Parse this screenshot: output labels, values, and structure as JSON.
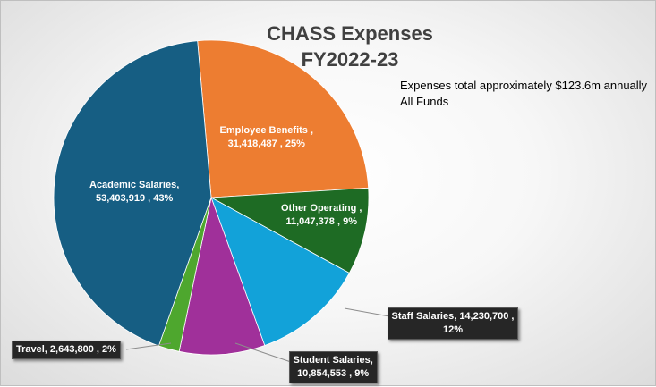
{
  "chart_data": {
    "type": "pie",
    "title_line1": "CHASS Expenses",
    "title_line2": "FY2022-23",
    "note_line1": "Expenses total approximately $123.6m annually",
    "note_line2": "All Funds",
    "slices": [
      {
        "name": "Employee Benefits",
        "value": 31418487,
        "value_text": "31,418,487",
        "percent_text": "25%",
        "color": "#ED7D31",
        "label_line1": "Employee Benefits ,",
        "label_line2": "31,418,487 , 25%"
      },
      {
        "name": "Other Operating",
        "value": 11047378,
        "value_text": "11,047,378",
        "percent_text": "9%",
        "color": "#1E6B24",
        "label_line1": "Other Operating ,",
        "label_line2": "11,047,378 , 9%"
      },
      {
        "name": "Staff Salaries",
        "value": 14230700,
        "value_text": "14,230,700",
        "percent_text": "12%",
        "color": "#12A2D9",
        "label_line1": "Staff Salaries,  14,230,700 ,",
        "label_line2": "12%"
      },
      {
        "name": "Student Salaries",
        "value": 10854553,
        "value_text": "10,854,553",
        "percent_text": "9%",
        "color": "#A0309A",
        "label_line1": "Student Salaries,",
        "label_line2": "10,854,553 , 9%"
      },
      {
        "name": "Travel",
        "value": 2643800,
        "value_text": "2,643,800",
        "percent_text": "2%",
        "color": "#4EA72E",
        "label_line1": "Travel,  2,643,800 , 2%",
        "label_line2": ""
      },
      {
        "name": "Academic Salaries",
        "value": 53403919,
        "value_text": "53,403,919",
        "percent_text": "43%",
        "color": "#165E83",
        "label_line1": "Academic Salaries,",
        "label_line2": "53,403,919 , 43%"
      }
    ],
    "legend": "none"
  }
}
